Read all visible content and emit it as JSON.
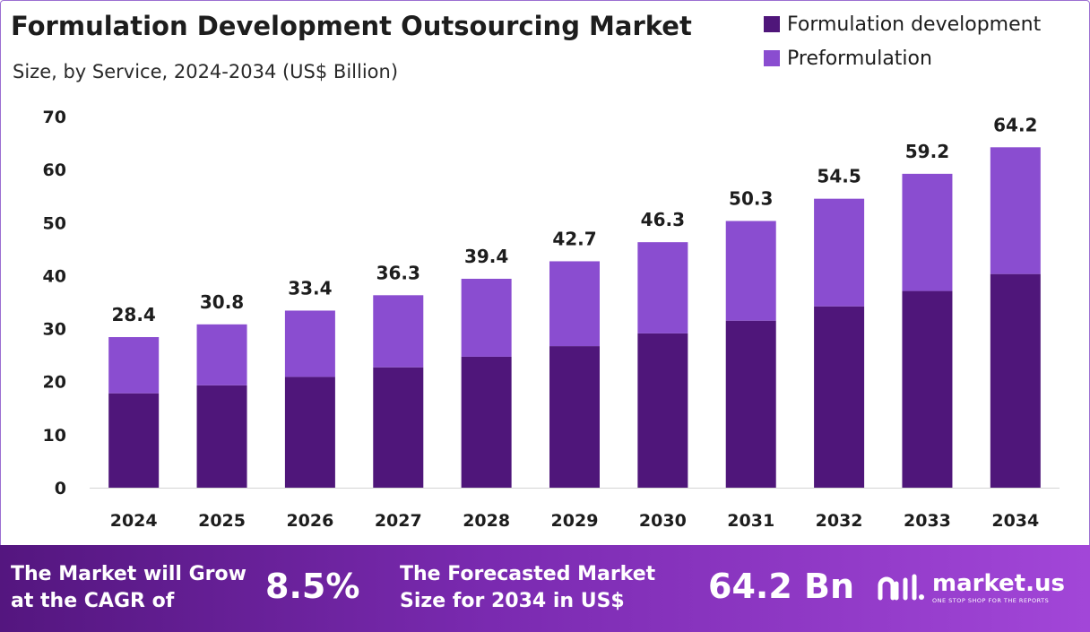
{
  "header": {
    "title": "Formulation Development  Outsourcing Market",
    "subtitle": "Size, by Service, 2024-2034 (US$ Billion)"
  },
  "chart_data": {
    "type": "bar",
    "stacked": true,
    "categories": [
      "2024",
      "2025",
      "2026",
      "2027",
      "2028",
      "2029",
      "2030",
      "2031",
      "2032",
      "2033",
      "2034"
    ],
    "series": [
      {
        "name": "Formulation development",
        "color": "#4f167a",
        "values": [
          17.8,
          19.3,
          20.9,
          22.7,
          24.7,
          26.7,
          29.1,
          31.5,
          34.2,
          37.1,
          40.3
        ]
      },
      {
        "name": "Preformulation",
        "color": "#8a4dd0",
        "values": [
          10.6,
          11.5,
          12.5,
          13.6,
          14.7,
          16.0,
          17.2,
          18.8,
          20.3,
          22.1,
          23.9
        ]
      }
    ],
    "totals": [
      "28.4",
      "30.8",
      "33.4",
      "36.3",
      "39.4",
      "42.7",
      "46.3",
      "50.3",
      "54.5",
      "59.2",
      "64.2"
    ],
    "ylim": [
      0,
      70
    ],
    "yticks": [
      "0",
      "10",
      "20",
      "30",
      "40",
      "50",
      "60",
      "70"
    ],
    "grid": false,
    "legend_position": "top-right"
  },
  "footer": {
    "cagr_label_line1": "The Market will Grow",
    "cagr_label_line2": "at the CAGR of",
    "cagr_value": "8.5%",
    "forecast_label_line1": "The Forecasted Market",
    "forecast_label_line2": "Size for 2034 in US$",
    "forecast_value": "64.2 Bn",
    "brand_name": "market.us",
    "brand_tagline": "ONE STOP SHOP FOR THE REPORTS",
    "logo_icon": "market-us-logo-icon"
  }
}
